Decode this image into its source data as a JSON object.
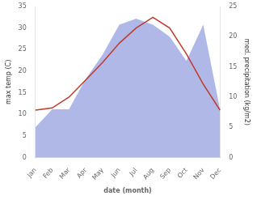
{
  "chart_data": {
    "type": "line",
    "categories": [
      "Jan",
      "Feb",
      "Mar",
      "Apr",
      "May",
      "Jun",
      "Jul",
      "Aug",
      "Sep",
      "Oct",
      "Nov",
      "Dec"
    ],
    "xlabel": "date (month)",
    "ylabel": "max temp (C)",
    "y2label": "med. precipitation (kg/m2)",
    "series": [
      {
        "type": "area",
        "color": "#b0b8e8",
        "axis": "y2",
        "values": [
          5.0,
          8.0,
          8.0,
          13.0,
          17.0,
          22.0,
          23.0,
          22.0,
          20.0,
          16.0,
          22.0,
          8.0
        ]
      },
      {
        "type": "line",
        "color": "#c0392b",
        "values": [
          11.0,
          11.5,
          14.0,
          18.0,
          22.0,
          26.5,
          30.0,
          32.5,
          30.0,
          24.0,
          17.0,
          11.0
        ]
      }
    ],
    "ylim": [
      0,
      35
    ],
    "yticks": [
      0,
      5,
      10,
      15,
      20,
      25,
      30,
      35
    ],
    "y2lim": [
      0,
      25
    ],
    "y2ticks": [
      0,
      5,
      10,
      15,
      20,
      25
    ],
    "grid": false
  }
}
